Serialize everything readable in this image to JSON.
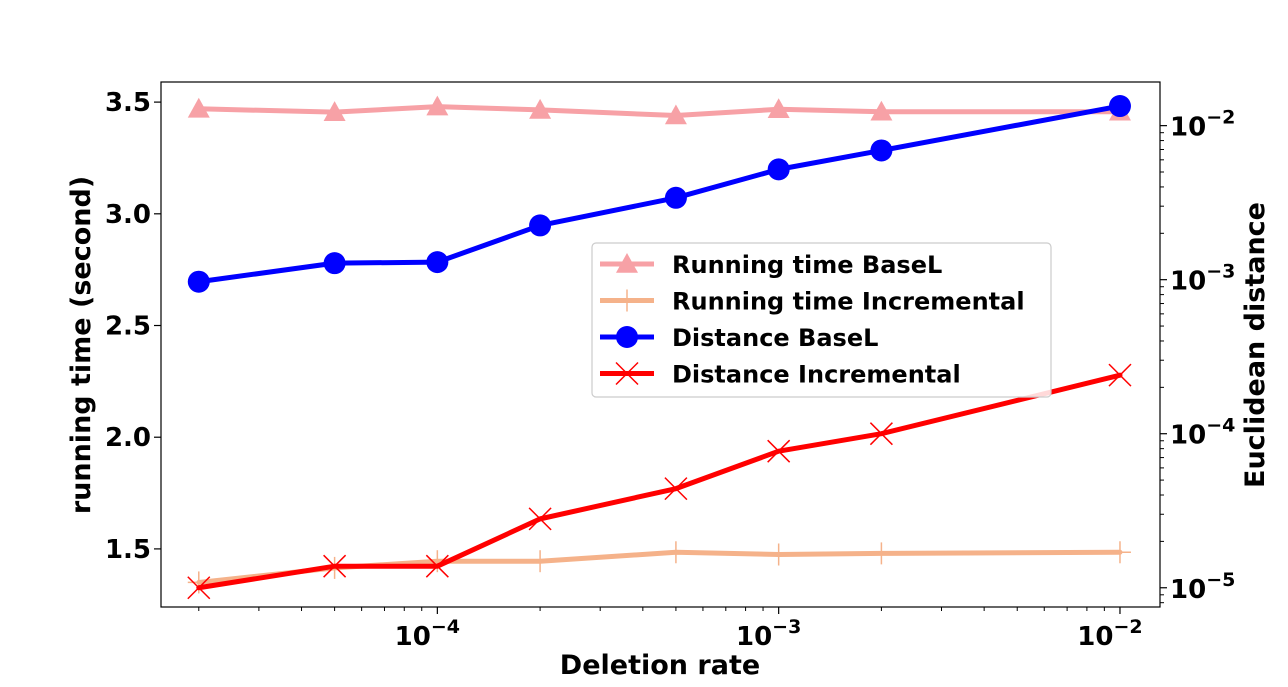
{
  "chart_data": {
    "type": "line",
    "title": "",
    "xlabel": "Deletion rate",
    "ylabel_left": "running time (second)",
    "ylabel_right": "Euclidean distance",
    "xscale": "log",
    "x": [
      2e-05,
      5e-05,
      0.0001,
      0.0002,
      0.0005,
      0.001,
      0.002,
      0.01
    ],
    "xlim": [
      1.55e-05,
      0.0131
    ],
    "x_ticks": [
      {
        "value": 0.0001,
        "base": "10",
        "exp": "−4"
      },
      {
        "value": 0.001,
        "base": "10",
        "exp": "−3"
      },
      {
        "value": 0.01,
        "base": "10",
        "exp": "−2"
      }
    ],
    "ylim_left": [
      1.24,
      3.59
    ],
    "y_ticks_left": [
      {
        "value": 1.5,
        "label": "1.5"
      },
      {
        "value": 2.0,
        "label": "2.0"
      },
      {
        "value": 2.5,
        "label": "2.5"
      },
      {
        "value": 3.0,
        "label": "3.0"
      },
      {
        "value": 3.5,
        "label": "3.5"
      }
    ],
    "yscale_right": "log",
    "ylim_right": [
      7.5e-06,
      0.0192
    ],
    "y_ticks_right": [
      {
        "value": 1e-05,
        "base": "10",
        "exp": "−5"
      },
      {
        "value": 0.0001,
        "base": "10",
        "exp": "−4"
      },
      {
        "value": 0.001,
        "base": "10",
        "exp": "−3"
      },
      {
        "value": 0.01,
        "base": "10",
        "exp": "−2"
      }
    ],
    "grid": false,
    "legend_position": "center-right",
    "series": [
      {
        "name": "Running time BaseL",
        "axis": "left",
        "color": "#f7a1a6",
        "marker": "triangle",
        "values": [
          3.47,
          3.455,
          3.48,
          3.465,
          3.44,
          3.468,
          3.457,
          3.457
        ]
      },
      {
        "name": "Running time Incremental",
        "axis": "left",
        "color": "#f5b28a",
        "marker": "plus",
        "values": [
          1.35,
          1.415,
          1.445,
          1.445,
          1.485,
          1.475,
          1.48,
          1.485
        ]
      },
      {
        "name": "Distance BaseL",
        "axis": "right",
        "color": "#0000ff",
        "marker": "circle",
        "values": [
          0.00097,
          0.00128,
          0.0013,
          0.00225,
          0.0034,
          0.0052,
          0.0069,
          0.0134
        ]
      },
      {
        "name": "Distance Incremental",
        "axis": "right",
        "color": "#ff0000",
        "marker": "x",
        "values": [
          1e-05,
          1.38e-05,
          1.38e-05,
          2.8e-05,
          4.4e-05,
          7.7e-05,
          0.0001,
          0.00024
        ]
      }
    ]
  }
}
